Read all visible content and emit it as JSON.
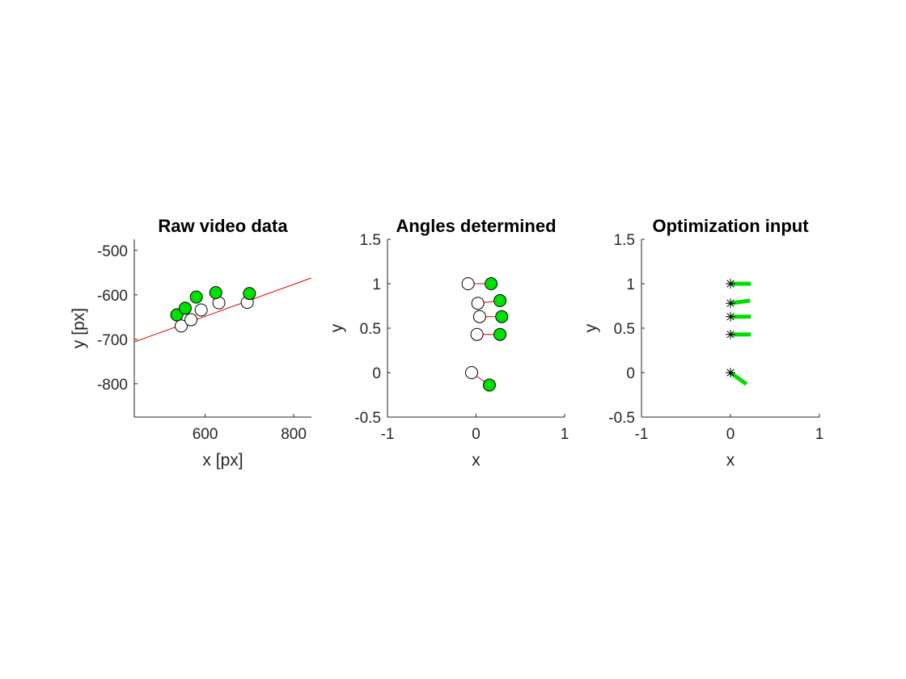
{
  "chart_data": [
    {
      "type": "scatter",
      "title": "Raw video data",
      "xlabel": "x [px]",
      "ylabel": "y [px]",
      "xlim": [
        440,
        840
      ],
      "ylim": [
        -875,
        -475
      ],
      "xticks": [
        600,
        800
      ],
      "xtick_labels": [
        "600",
        "800"
      ],
      "yticks": [
        -500,
        -600,
        -700,
        -800
      ],
      "ytick_labels": [
        "-500",
        "-600",
        "-700",
        "-800"
      ],
      "axes": "left-bottom",
      "grid": false,
      "series": [
        {
          "marker": "circle-open",
          "points": [
            [
              546,
              -670
            ],
            [
              568,
              -656
            ],
            [
              591,
              -634
            ],
            [
              631,
              -618
            ],
            [
              695,
              -617
            ]
          ]
        },
        {
          "marker": "circle-filled",
          "color": "#00e000",
          "points": [
            [
              536,
              -645
            ],
            [
              555,
              -630
            ],
            [
              580,
              -605
            ],
            [
              624,
              -595
            ],
            [
              700,
              -597
            ]
          ]
        },
        {
          "type": "line",
          "color": "#e00000",
          "points": [
            [
              440,
              -706
            ],
            [
              840,
              -562
            ]
          ]
        }
      ]
    },
    {
      "type": "scatter",
      "title": "Angles determined",
      "xlabel": "x",
      "ylabel": "y",
      "xlim": [
        -1,
        1
      ],
      "ylim": [
        -0.5,
        1.5
      ],
      "xticks": [
        -1,
        0,
        1
      ],
      "xtick_labels": [
        "-1",
        "0",
        "1"
      ],
      "yticks": [
        -0.5,
        0,
        0.5,
        1,
        1.5
      ],
      "ytick_labels": [
        "-0.5",
        "0",
        "0.5",
        "1",
        "1.5"
      ],
      "axes": "left-bottom",
      "grid": false,
      "series": [
        {
          "marker": "circle-open",
          "points": [
            [
              -0.09,
              1.0
            ],
            [
              0.02,
              0.78
            ],
            [
              0.04,
              0.63
            ],
            [
              0.01,
              0.43
            ],
            [
              -0.05,
              0.0
            ]
          ]
        },
        {
          "marker": "circle-filled",
          "color": "#00e000",
          "points": [
            [
              0.17,
              1.0
            ],
            [
              0.27,
              0.81
            ],
            [
              0.29,
              0.63
            ],
            [
              0.27,
              0.43
            ],
            [
              0.15,
              -0.14
            ]
          ]
        },
        {
          "type": "segments",
          "color": "#e00000",
          "pairs": [
            [
              [
                -0.09,
                1.0
              ],
              [
                0.17,
                1.0
              ]
            ],
            [
              [
                0.02,
                0.78
              ],
              [
                0.27,
                0.81
              ]
            ],
            [
              [
                0.04,
                0.63
              ],
              [
                0.29,
                0.63
              ]
            ],
            [
              [
                0.01,
                0.43
              ],
              [
                0.27,
                0.43
              ]
            ],
            [
              [
                -0.05,
                0.0
              ],
              [
                0.15,
                -0.14
              ]
            ]
          ]
        }
      ]
    },
    {
      "type": "scatter",
      "title": "Optimization input",
      "xlabel": "x",
      "ylabel": "y",
      "xlim": [
        -1,
        1
      ],
      "ylim": [
        -0.5,
        1.5
      ],
      "xticks": [
        -1,
        0,
        1
      ],
      "xtick_labels": [
        "-1",
        "0",
        "1"
      ],
      "yticks": [
        -0.5,
        0,
        0.5,
        1,
        1.5
      ],
      "ytick_labels": [
        "-0.5",
        "0",
        "0.5",
        "1",
        "1.5"
      ],
      "axes": "left-bottom",
      "grid": false,
      "series": [
        {
          "marker": "asterisk",
          "color": "#000000",
          "points": [
            [
              0,
              1.0
            ],
            [
              0,
              0.78
            ],
            [
              0,
              0.63
            ],
            [
              0,
              0.43
            ],
            [
              0,
              0.0
            ]
          ]
        },
        {
          "type": "segments",
          "color": "#00e000",
          "thick": true,
          "pairs": [
            [
              [
                0,
                1.0
              ],
              [
                0.23,
                1.0
              ]
            ],
            [
              [
                0,
                0.78
              ],
              [
                0.22,
                0.81
              ]
            ],
            [
              [
                0,
                0.63
              ],
              [
                0.23,
                0.63
              ]
            ],
            [
              [
                0,
                0.43
              ],
              [
                0.23,
                0.43
              ]
            ],
            [
              [
                0,
                0.0
              ],
              [
                0.18,
                -0.13
              ]
            ]
          ]
        }
      ]
    }
  ]
}
